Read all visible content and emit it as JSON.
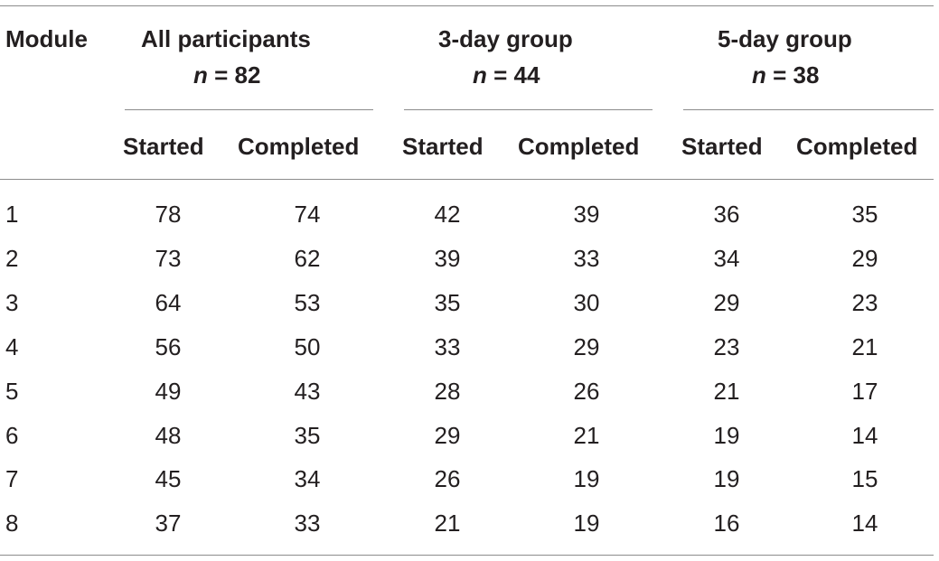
{
  "table": {
    "module_header": "Module",
    "groups": [
      {
        "name": "All participants",
        "n_var": "n",
        "n_eq": " = 82"
      },
      {
        "name": "3-day group",
        "n_var": "n",
        "n_eq": " = 44"
      },
      {
        "name": "5-day group",
        "n_var": "n",
        "n_eq": " = 38"
      }
    ],
    "subheaders": [
      "Started",
      "Completed",
      "Started",
      "Completed",
      "Started",
      "Completed"
    ],
    "rows": [
      {
        "module": "1",
        "values": [
          "78",
          "74",
          "42",
          "39",
          "36",
          "35"
        ]
      },
      {
        "module": "2",
        "values": [
          "73",
          "62",
          "39",
          "33",
          "34",
          "29"
        ]
      },
      {
        "module": "3",
        "values": [
          "64",
          "53",
          "35",
          "30",
          "29",
          "23"
        ]
      },
      {
        "module": "4",
        "values": [
          "56",
          "50",
          "33",
          "29",
          "23",
          "21"
        ]
      },
      {
        "module": "5",
        "values": [
          "49",
          "43",
          "28",
          "26",
          "21",
          "17"
        ]
      },
      {
        "module": "6",
        "values": [
          "48",
          "35",
          "29",
          "21",
          "19",
          "14"
        ]
      },
      {
        "module": "7",
        "values": [
          "45",
          "34",
          "26",
          "19",
          "19",
          "15"
        ]
      },
      {
        "module": "8",
        "values": [
          "37",
          "33",
          "21",
          "19",
          "16",
          "14"
        ]
      }
    ]
  }
}
